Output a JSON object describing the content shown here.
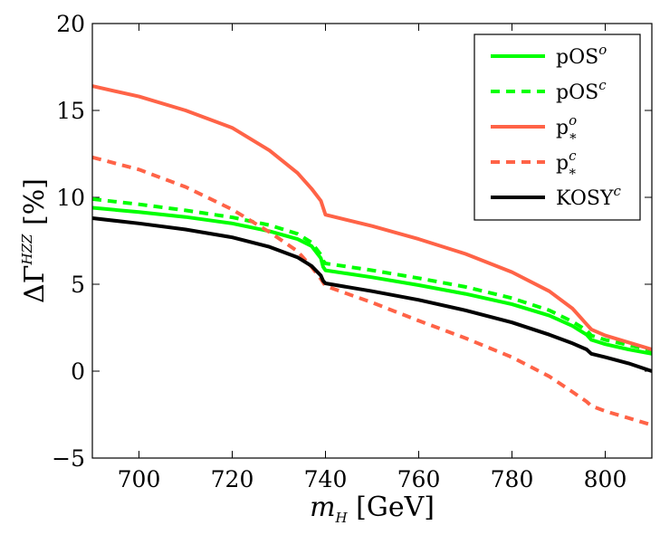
{
  "chart_data": {
    "type": "line",
    "title": "",
    "xlabel": {
      "main": "m",
      "sub": "H",
      "unit": " [GeV]"
    },
    "ylabel": {
      "main": "ΔΓ",
      "sup": "HZZ",
      "unit": " [%]"
    },
    "xlim": [
      690,
      810
    ],
    "ylim": [
      -5,
      20
    ],
    "xticks": [
      700,
      720,
      740,
      760,
      780,
      800
    ],
    "yticks": [
      -5,
      0,
      5,
      10,
      15,
      20
    ],
    "xtick_labels": [
      "700",
      "720",
      "740",
      "760",
      "780",
      "800"
    ],
    "ytick_labels": [
      "−5",
      "0",
      "5",
      "10",
      "15",
      "20"
    ],
    "legend_position": "top-right",
    "series": [
      {
        "name": "pOS",
        "sup": "o",
        "sub": "",
        "color": "#00ff00",
        "dash": "solid",
        "points": [
          [
            690,
            9.4
          ],
          [
            700,
            9.15
          ],
          [
            710,
            8.87
          ],
          [
            720,
            8.5
          ],
          [
            728,
            8.05
          ],
          [
            734,
            7.6
          ],
          [
            737,
            7.2
          ],
          [
            739,
            6.5
          ],
          [
            739.5,
            6.0
          ],
          [
            740,
            5.8
          ],
          [
            750,
            5.4
          ],
          [
            760,
            4.95
          ],
          [
            770,
            4.45
          ],
          [
            780,
            3.85
          ],
          [
            788,
            3.2
          ],
          [
            793,
            2.6
          ],
          [
            796,
            2.1
          ],
          [
            797,
            1.8
          ],
          [
            800,
            1.55
          ],
          [
            805,
            1.25
          ],
          [
            810,
            1.0
          ]
        ]
      },
      {
        "name": "pOS",
        "sup": "c",
        "sub": "",
        "color": "#00ff00",
        "dash": "dashed",
        "points": [
          [
            690,
            9.9
          ],
          [
            700,
            9.6
          ],
          [
            710,
            9.25
          ],
          [
            720,
            8.85
          ],
          [
            728,
            8.4
          ],
          [
            734,
            7.9
          ],
          [
            737,
            7.4
          ],
          [
            739,
            6.7
          ],
          [
            739.5,
            6.35
          ],
          [
            740,
            6.2
          ],
          [
            750,
            5.8
          ],
          [
            760,
            5.35
          ],
          [
            770,
            4.85
          ],
          [
            780,
            4.2
          ],
          [
            788,
            3.5
          ],
          [
            793,
            2.85
          ],
          [
            796,
            2.35
          ],
          [
            797,
            2.05
          ],
          [
            800,
            1.8
          ],
          [
            805,
            1.5
          ],
          [
            810,
            1.2
          ]
        ]
      },
      {
        "name": "p",
        "sup": "o",
        "sub": "*",
        "color": "#ff6347",
        "dash": "solid",
        "points": [
          [
            690,
            16.4
          ],
          [
            700,
            15.8
          ],
          [
            710,
            15.0
          ],
          [
            720,
            14.0
          ],
          [
            728,
            12.7
          ],
          [
            734,
            11.4
          ],
          [
            737,
            10.5
          ],
          [
            739,
            9.8
          ],
          [
            740,
            9.0
          ],
          [
            750,
            8.35
          ],
          [
            760,
            7.6
          ],
          [
            770,
            6.75
          ],
          [
            780,
            5.7
          ],
          [
            788,
            4.6
          ],
          [
            793,
            3.6
          ],
          [
            796,
            2.7
          ],
          [
            797,
            2.4
          ],
          [
            800,
            2.05
          ],
          [
            805,
            1.65
          ],
          [
            810,
            1.25
          ]
        ]
      },
      {
        "name": "p",
        "sup": "c",
        "sub": "*",
        "color": "#ff6347",
        "dash": "dashed",
        "points": [
          [
            690,
            12.3
          ],
          [
            700,
            11.6
          ],
          [
            710,
            10.6
          ],
          [
            720,
            9.3
          ],
          [
            728,
            8.0
          ],
          [
            734,
            6.9
          ],
          [
            737,
            6.0
          ],
          [
            739,
            5.3
          ],
          [
            740,
            4.9
          ],
          [
            750,
            3.95
          ],
          [
            760,
            2.9
          ],
          [
            770,
            1.9
          ],
          [
            780,
            0.8
          ],
          [
            788,
            -0.3
          ],
          [
            793,
            -1.2
          ],
          [
            796,
            -1.75
          ],
          [
            797,
            -2.0
          ],
          [
            800,
            -2.3
          ],
          [
            805,
            -2.7
          ],
          [
            810,
            -3.1
          ]
        ]
      },
      {
        "name": "KOSY",
        "sup": "c",
        "sub": "",
        "color": "#000000",
        "dash": "solid",
        "points": [
          [
            690,
            8.8
          ],
          [
            700,
            8.5
          ],
          [
            710,
            8.15
          ],
          [
            720,
            7.7
          ],
          [
            728,
            7.15
          ],
          [
            734,
            6.55
          ],
          [
            737,
            6.05
          ],
          [
            739,
            5.5
          ],
          [
            739.5,
            5.2
          ],
          [
            740,
            5.05
          ],
          [
            750,
            4.6
          ],
          [
            760,
            4.1
          ],
          [
            770,
            3.5
          ],
          [
            780,
            2.8
          ],
          [
            788,
            2.1
          ],
          [
            793,
            1.6
          ],
          [
            796,
            1.25
          ],
          [
            797,
            1.0
          ],
          [
            800,
            0.8
          ],
          [
            805,
            0.45
          ],
          [
            810,
            0.0
          ]
        ]
      }
    ]
  }
}
